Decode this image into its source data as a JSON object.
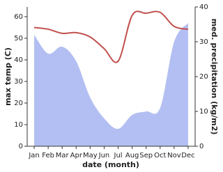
{
  "chart_data": {
    "type": "line",
    "categories": [
      "Jan",
      "Feb",
      "Mar",
      "Apr",
      "May",
      "Jun",
      "Jul",
      "Aug",
      "Sep",
      "Oct",
      "Nov",
      "Dec"
    ],
    "xlabel": "date (month)",
    "ylabel": "max temp (C)",
    "y2label": "med. precipitation (kg/m2)",
    "ylim": [
      0,
      64.5
    ],
    "yticks": [
      0,
      10,
      20,
      30,
      40,
      50,
      60
    ],
    "y2lim": [
      0,
      40
    ],
    "y2ticks": [
      0,
      10,
      20,
      30,
      40
    ],
    "series": [
      {
        "type": "area",
        "axis": "y2",
        "color": "#b3bff2",
        "values": [
          32,
          26.6,
          28.6,
          24.4,
          14,
          8,
          5,
          9,
          10,
          11,
          30,
          35.4
        ]
      },
      {
        "type": "line",
        "color": "#c0504d",
        "values": [
          55,
          54.2,
          52.3,
          52.6,
          50.6,
          45.2,
          39.4,
          60.6,
          61.6,
          62,
          55.5,
          54.2
        ]
      }
    ]
  }
}
